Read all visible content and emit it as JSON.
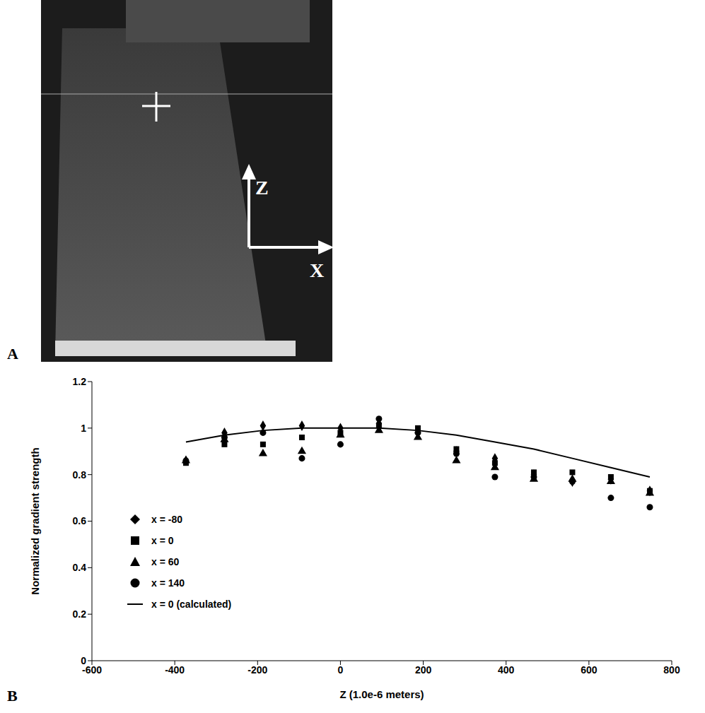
{
  "panel_a": {
    "label": "A",
    "axis_labels": [
      "Z",
      "X"
    ]
  },
  "panel_b": {
    "label": "B"
  },
  "chart_data": {
    "type": "scatter",
    "x_label": "Z (1.0e-6 meters)",
    "y_label": "Normalized gradient strength",
    "x": [
      -373,
      -280,
      -187,
      -93,
      0,
      93,
      187,
      280,
      373,
      467,
      560,
      653,
      747
    ],
    "series": [
      {
        "name": "x = -80",
        "color": "#000000",
        "marker": "diamond",
        "values": [
          0.86,
          0.98,
          1.01,
          1.01,
          1.0,
          1.02,
          0.98,
          0.9,
          0.87,
          0.8,
          0.77,
          0.78,
          0.73
        ]
      },
      {
        "name": "x = 0",
        "color": "#000000",
        "marker": "square",
        "values": [
          0.85,
          0.93,
          0.93,
          0.96,
          0.98,
          1.01,
          1.0,
          0.91,
          0.85,
          0.81,
          0.81,
          0.79,
          0.73
        ]
      },
      {
        "name": "x = 60",
        "color": "#000000",
        "marker": "triangle",
        "values": [
          0.86,
          0.95,
          0.89,
          0.9,
          0.97,
          0.99,
          0.96,
          0.86,
          0.83,
          0.78,
          0.78,
          0.77,
          0.72
        ]
      },
      {
        "name": "x = 140",
        "color": "#000000",
        "marker": "circle",
        "values": [
          0.86,
          0.96,
          0.98,
          0.87,
          0.93,
          1.04,
          0.98,
          0.89,
          0.79,
          0.79,
          0.77,
          0.7,
          0.66
        ]
      },
      {
        "name": "x = 0 (calculated)",
        "color": "#000000",
        "type": "line",
        "line_style": "solid",
        "values": [
          0.94,
          0.97,
          0.99,
          1.0,
          1.0,
          1.0,
          0.99,
          0.97,
          0.94,
          0.91,
          0.87,
          0.83,
          0.79
        ]
      }
    ],
    "xlim": [
      -600,
      800
    ],
    "xticks": [
      -600,
      -400,
      -200,
      0,
      200,
      400,
      600,
      800
    ],
    "ylim": [
      0,
      1.2
    ],
    "yticks": [
      0,
      0.2,
      0.4,
      0.6,
      0.8,
      1,
      1.2
    ],
    "legend": "left",
    "grid": false
  }
}
